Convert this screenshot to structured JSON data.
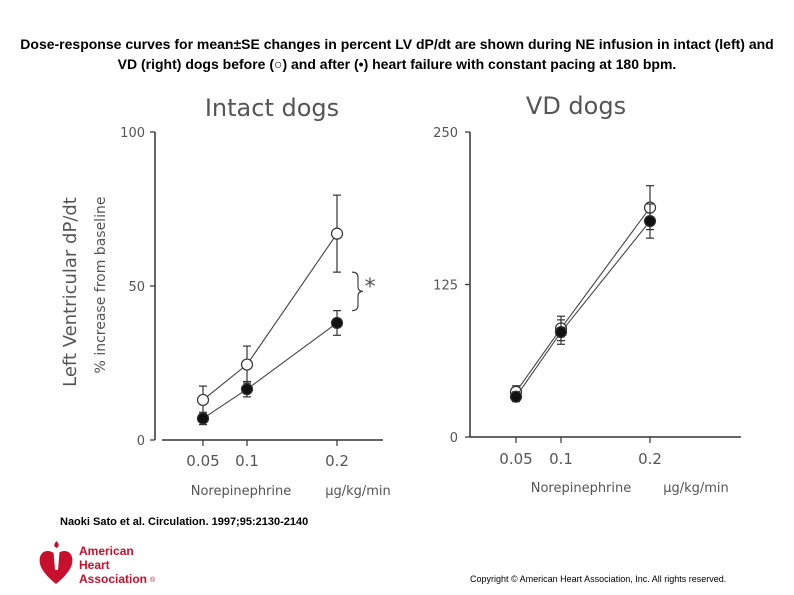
{
  "caption": "Dose-response curves for mean±SE changes in percent LV dP/dt are shown during NE infusion in intact (left) and VD (right) dogs before (○) and after (•) heart failure with constant pacing at 180 bpm.",
  "citation": "Naoki Sato et al. Circulation. 1997;95:2130-2140",
  "logo": {
    "line1": "American",
    "line2": "Heart",
    "line3": "Association",
    "mark": "®"
  },
  "copyright": "Copyright © American Heart Association, Inc. All rights reserved.",
  "y_axis_label": "Left Ventricular dP/dt",
  "chart_data": [
    {
      "type": "line",
      "title": "Intact dogs",
      "xlabel": "Norepinephrine",
      "xunit": "µg/kg/min",
      "ylabel": "% increase from baseline",
      "x_ticks": [
        "0.05",
        "0.1",
        "0.2"
      ],
      "y_ticks": [
        "0",
        "50",
        "100"
      ],
      "ylim": [
        0,
        100
      ],
      "significance": "*",
      "series": [
        {
          "name": "before heart failure (open circles)",
          "marker": "open",
          "values": [
            13,
            24.5,
            67
          ],
          "errors": [
            4.5,
            6,
            12.5
          ]
        },
        {
          "name": "after heart failure (filled circles)",
          "marker": "filled",
          "values": [
            7,
            16.5,
            38
          ],
          "errors": [
            2,
            2.5,
            4
          ]
        }
      ]
    },
    {
      "type": "line",
      "title": "VD dogs",
      "xlabel": "Norepinephrine",
      "xunit": "µg/kg/min",
      "ylabel": "",
      "x_ticks": [
        "0.05",
        "0.1",
        "0.2"
      ],
      "y_ticks": [
        "0",
        "125",
        "250"
      ],
      "ylim": [
        0,
        250
      ],
      "significance": "",
      "series": [
        {
          "name": "before heart failure (open circles)",
          "marker": "open",
          "values": [
            37,
            89,
            188
          ],
          "errors": [
            5,
            10,
            18
          ]
        },
        {
          "name": "after heart failure (filled circles)",
          "marker": "filled",
          "values": [
            33,
            86,
            177
          ],
          "errors": [
            4,
            10,
            14
          ]
        }
      ]
    }
  ]
}
